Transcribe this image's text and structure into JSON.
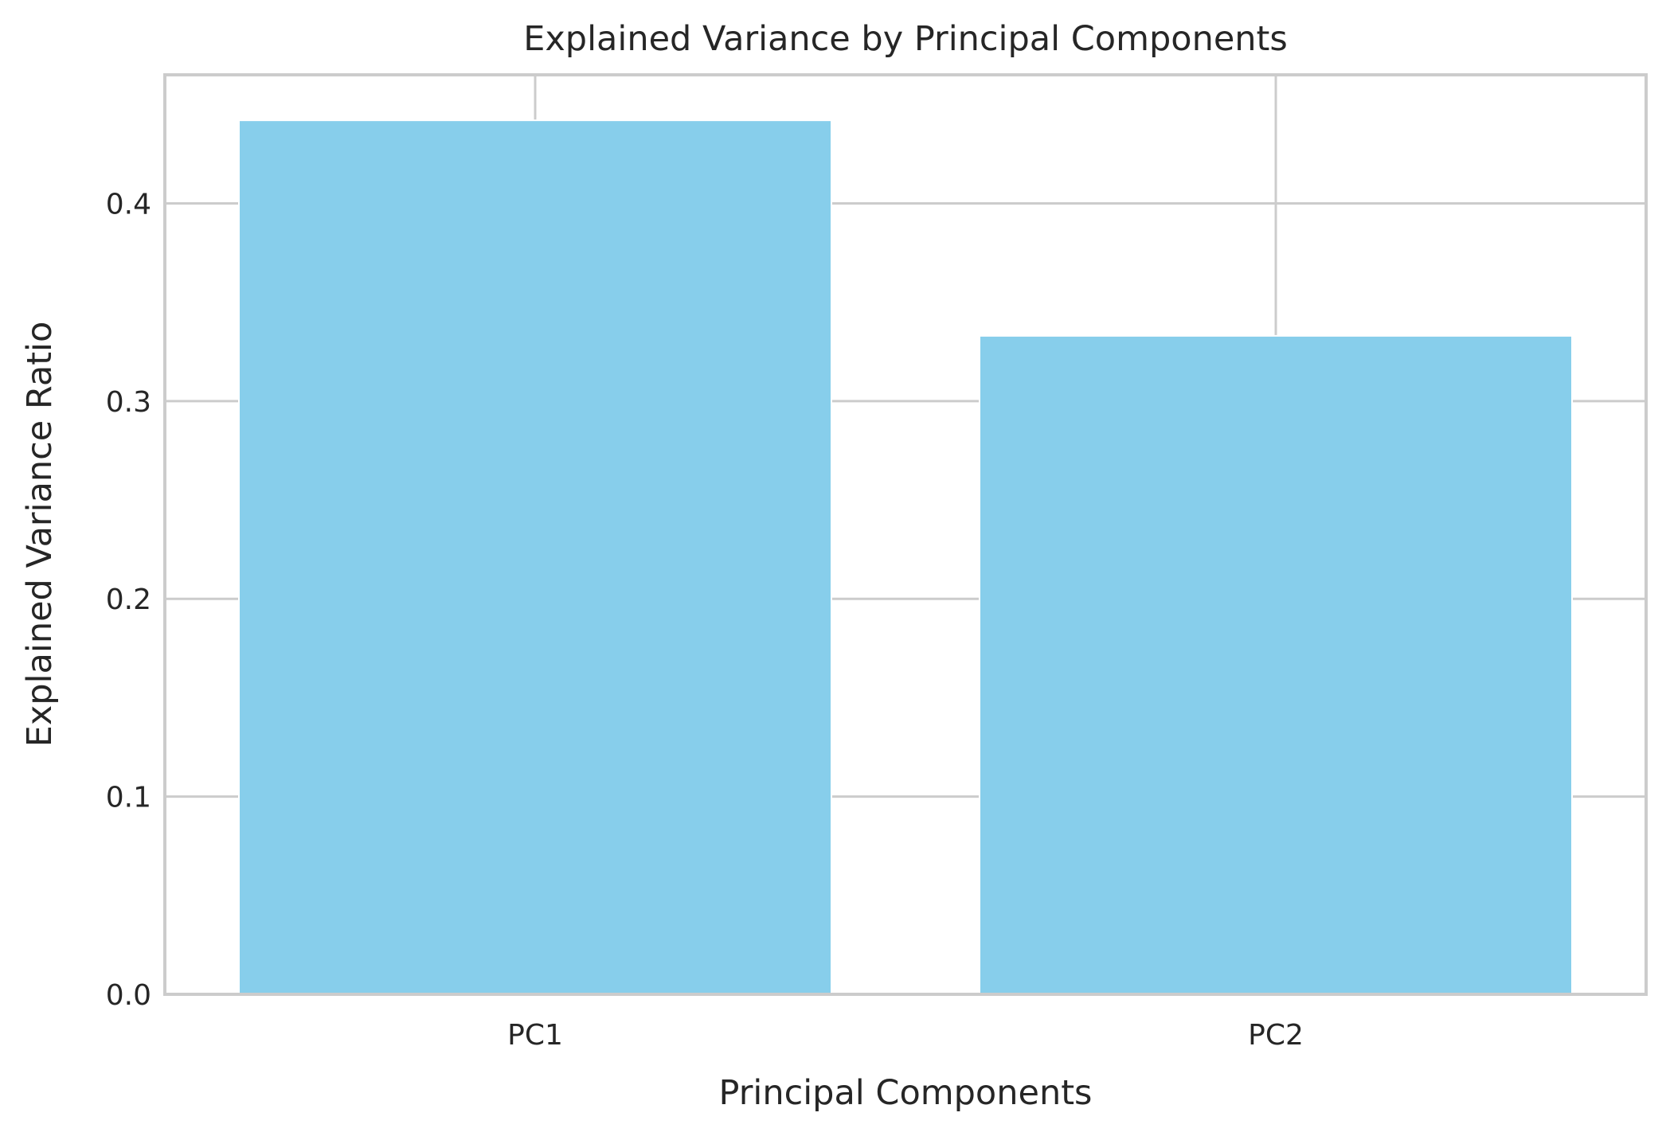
{
  "chart_data": {
    "type": "bar",
    "title": "Explained Variance by Principal Components",
    "xlabel": "Principal Components",
    "ylabel": "Explained Variance Ratio",
    "categories": [
      "PC1",
      "PC2"
    ],
    "values": [
      0.442,
      0.333
    ],
    "ylim": [
      0,
      0.465
    ],
    "yticks": [
      0.0,
      0.1,
      0.2,
      0.3,
      0.4
    ],
    "ytick_labels": [
      "0.0",
      "0.1",
      "0.2",
      "0.3",
      "0.4"
    ],
    "grid": true,
    "bar_color": "#87CEEB",
    "grid_color": "#cccccc"
  }
}
